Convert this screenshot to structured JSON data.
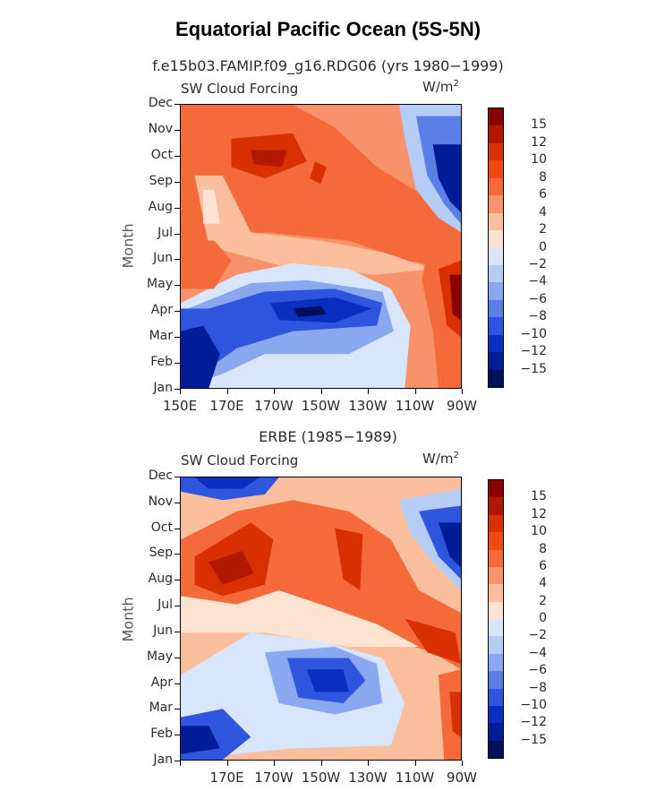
{
  "title": "Equatorial Pacific Ocean (5S-5N)",
  "colorbar_levels": [
    "15",
    "12",
    "10",
    "8",
    "6",
    "4",
    "2",
    "0",
    "−2",
    "−4",
    "−6",
    "−8",
    "−10",
    "−12",
    "−15"
  ],
  "colorbar_colors": [
    "#8b0000",
    "#b21800",
    "#d83000",
    "#f04a10",
    "#f56a3a",
    "#f7926a",
    "#fbbf9e",
    "#fde4d2",
    "#d8e6fb",
    "#b5ccf5",
    "#8aa8f0",
    "#5a80e8",
    "#2f54dd",
    "#0a2ec0",
    "#001c96",
    "#00105a"
  ],
  "chart_data": [
    {
      "type": "contour",
      "subtitle": "f.e15b03.FAMIP.f09_g16.RDG06 (yrs 1980−1999)",
      "left_label": "SW Cloud Forcing",
      "right_label": "W/m",
      "right_label_sup": "2",
      "ylabel": "Month",
      "y_ticks": [
        "Jan",
        "Feb",
        "Mar",
        "Apr",
        "May",
        "Jun",
        "Jul",
        "Aug",
        "Sep",
        "Oct",
        "Nov",
        "Dec"
      ],
      "x_ticks": [
        "150E",
        "170E",
        "170W",
        "150W",
        "130W",
        "110W",
        "90W"
      ],
      "xlim": [
        "150E",
        "90W"
      ],
      "ylim": [
        "Jan",
        "Dec"
      ],
      "units": "W/m2"
    },
    {
      "type": "contour",
      "subtitle": "ERBE (1985−1989)",
      "left_label": "SW Cloud Forcing",
      "right_label": "W/m",
      "right_label_sup": "2",
      "ylabel": "Month",
      "y_ticks": [
        "Jan",
        "Feb",
        "Mar",
        "Apr",
        "May",
        "Jun",
        "Jul",
        "Aug",
        "Sep",
        "Oct",
        "Nov",
        "Dec"
      ],
      "x_ticks": [
        "",
        "170E",
        "170W",
        "150W",
        "130W",
        "110W",
        "90W"
      ],
      "xlim": [
        "150E",
        "90W"
      ],
      "ylim": [
        "Jan",
        "Dec"
      ],
      "units": "W/m2"
    }
  ]
}
